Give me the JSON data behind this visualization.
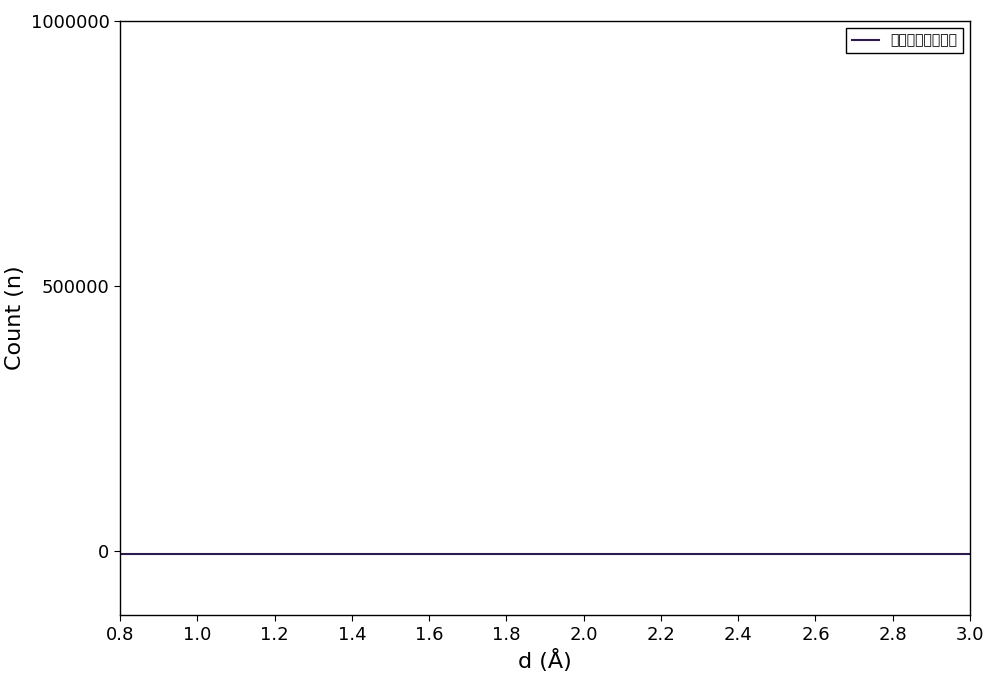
{
  "x_start": 0.8,
  "x_end": 3.0,
  "y_value": -5000,
  "xlim": [
    0.8,
    3.0
  ],
  "ylim": [
    -120000,
    1000000
  ],
  "yticks": [
    0,
    500000,
    1000000
  ],
  "xticks": [
    0.8,
    1.0,
    1.2,
    1.4,
    1.6,
    1.8,
    2.0,
    2.2,
    2.4,
    2.6,
    2.8,
    3.0
  ],
  "xlabel": "d (Å)",
  "ylabel": "Count (n)",
  "legend_label": "相干散射长度为零",
  "line_color": "#2d1b4e",
  "line_width": 1.5,
  "background_color": "#ffffff",
  "font_size_labels": 16,
  "font_size_ticks": 13,
  "font_size_legend": 15
}
